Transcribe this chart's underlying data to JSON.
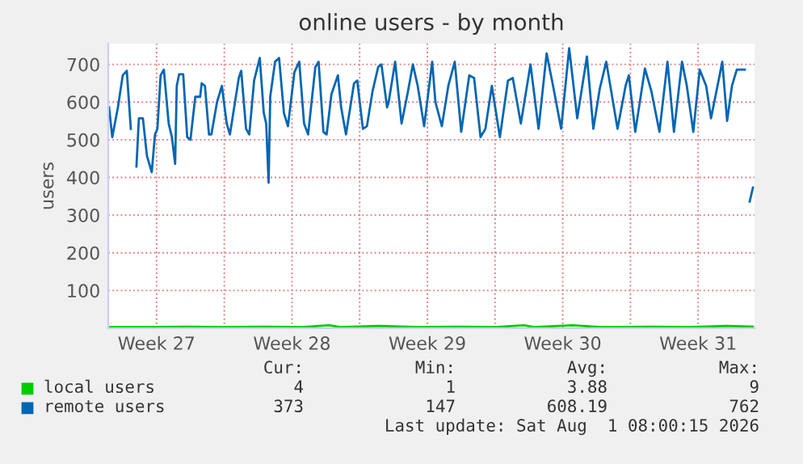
{
  "chart_data": {
    "type": "line",
    "title": "online users - by month",
    "ylabel": "users",
    "xlim": [
      "2026-06-30T00:00",
      "2026-08-02T10:00"
    ],
    "ylim": [
      0,
      755
    ],
    "xticks": [
      {
        "value": "2026-07-02T12:00",
        "label": "Week 27"
      },
      {
        "value": "2026-07-06T00:00",
        "label": null
      },
      {
        "value": "2026-07-09T12:00",
        "label": "Week 28"
      },
      {
        "value": "2026-07-13T00:00",
        "label": null
      },
      {
        "value": "2026-07-16T12:00",
        "label": "Week 29"
      },
      {
        "value": "2026-07-20T00:00",
        "label": null
      },
      {
        "value": "2026-07-23T12:00",
        "label": "Week 30"
      },
      {
        "value": "2026-07-27T00:00",
        "label": null
      },
      {
        "value": "2026-07-30T12:00",
        "label": "Week 31"
      }
    ],
    "yticks": [
      100,
      200,
      300,
      400,
      500,
      600,
      700
    ],
    "grid": true,
    "legend": "bottom",
    "marker": "none",
    "line_style": "solid",
    "series": [
      {
        "name": "local users",
        "color": "#00cc00",
        "x": [
          "2026-06-30T01:00",
          "2026-07-02T00:00",
          "2026-07-04T00:00",
          "2026-07-06T00:00",
          "2026-07-08T00:00",
          "2026-07-10T00:00",
          "2026-07-11T10:00",
          "2026-07-12T00:00",
          "2026-07-14T00:00",
          "2026-07-16T00:00",
          "2026-07-18T00:00",
          "2026-07-20T00:00",
          "2026-07-21T12:00",
          "2026-07-22T00:00",
          "2026-07-24T00:00",
          "2026-07-25T12:00",
          "2026-07-26T00:00",
          "2026-07-28T00:00",
          "2026-07-30T00:00",
          "2026-08-01T00:00",
          "2026-08-02T08:00"
        ],
        "values": [
          3,
          3,
          4,
          3,
          4,
          3,
          8,
          3,
          6,
          3,
          4,
          3,
          8,
          3,
          8,
          3,
          3,
          4,
          3,
          6,
          4
        ]
      },
      {
        "name": "remote users",
        "color": "#0066b3",
        "x": [
          "2026-06-30T01:00",
          "2026-06-30T05:00",
          "2026-06-30T12:00",
          "2026-06-30T18:00",
          "2026-06-30T23:00",
          "2026-07-01T04:00",
          "2026-07-01T07:00",
          "2026-07-01T11:00",
          "2026-07-01T14:00",
          "2026-07-01T19:00",
          "2026-07-02T00:00",
          "2026-07-02T06:00",
          "2026-07-02T10:00",
          "2026-07-02T13:00",
          "2026-07-02T17:00",
          "2026-07-02T21:00",
          "2026-07-03T03:00",
          "2026-07-03T07:00",
          "2026-07-03T11:00",
          "2026-07-03T13:00",
          "2026-07-03T16:00",
          "2026-07-03T21:00",
          "2026-07-04T02:00",
          "2026-07-04T06:00",
          "2026-07-04T12:00",
          "2026-07-04T18:00",
          "2026-07-04T20:00",
          "2026-07-05T00:00",
          "2026-07-05T05:00",
          "2026-07-05T08:00",
          "2026-07-05T15:00",
          "2026-07-05T21:00",
          "2026-07-06T03:00",
          "2026-07-06T07:00",
          "2026-07-06T18:00",
          "2026-07-06T21:00",
          "2026-07-07T03:00",
          "2026-07-07T07:00",
          "2026-07-07T13:00",
          "2026-07-07T20:00",
          "2026-07-08T01:00",
          "2026-07-08T04:00",
          "2026-07-08T07:00",
          "2026-07-08T09:00",
          "2026-07-08T15:00",
          "2026-07-08T20:00",
          "2026-07-09T02:00",
          "2026-07-09T07:00",
          "2026-07-09T15:00",
          "2026-07-09T21:00",
          "2026-07-10T03:00",
          "2026-07-10T08:00",
          "2026-07-10T17:00",
          "2026-07-10T21:00",
          "2026-07-11T03:00",
          "2026-07-11T07:00",
          "2026-07-11T13:00",
          "2026-07-11T21:00",
          "2026-07-12T01:00",
          "2026-07-12T07:00",
          "2026-07-12T17:00",
          "2026-07-12T21:00",
          "2026-07-13T04:00",
          "2026-07-13T09:00",
          "2026-07-13T16:00",
          "2026-07-13T23:00",
          "2026-07-14T03:00",
          "2026-07-14T10:00",
          "2026-07-14T12:00",
          "2026-07-14T20:00",
          "2026-07-15T04:00",
          "2026-07-15T12:00",
          "2026-07-15T18:00",
          "2026-07-16T00:00",
          "2026-07-16T08:00",
          "2026-07-16T18:00",
          "2026-07-16T22:00",
          "2026-07-17T06:00",
          "2026-07-17T14:00",
          "2026-07-17T22:00",
          "2026-07-18T06:00",
          "2026-07-18T16:00",
          "2026-07-18T22:00",
          "2026-07-19T06:00",
          "2026-07-19T12:00",
          "2026-07-19T20:00",
          "2026-07-20T06:00",
          "2026-07-20T16:00",
          "2026-07-20T22:00",
          "2026-07-21T08:00",
          "2026-07-21T20:00",
          "2026-07-22T06:00",
          "2026-07-22T16:00",
          "2026-07-23T00:00",
          "2026-07-23T10:00",
          "2026-07-23T20:00",
          "2026-07-24T06:00",
          "2026-07-24T18:00",
          "2026-07-25T02:00",
          "2026-07-25T10:00",
          "2026-07-25T18:00",
          "2026-07-26T08:00",
          "2026-07-26T18:00",
          "2026-07-26T22:00",
          "2026-07-27T06:00",
          "2026-07-27T18:00",
          "2026-07-28T02:00",
          "2026-07-28T12:00",
          "2026-07-28T22:00",
          "2026-07-29T06:00",
          "2026-07-29T16:00",
          "2026-07-29T22:00",
          "2026-07-30T06:00",
          "2026-07-30T14:00",
          "2026-07-30T22:00",
          "2026-07-31T04:00",
          "2026-07-31T10:00",
          "2026-07-31T18:00",
          "2026-08-01T00:00",
          "2026-08-01T06:00",
          "2026-08-01T12:00",
          "2026-08-01T22:00",
          "2026-08-02T00:00",
          "2026-08-02T04:00",
          "2026-08-02T08:00"
        ],
        "values": [
          586,
          507,
          586,
          671,
          683,
          529,
          null,
          429,
          557,
          557,
          457,
          414,
          514,
          529,
          671,
          686,
          543,
          507,
          436,
          643,
          674,
          674,
          507,
          500,
          614,
          614,
          650,
          643,
          514,
          514,
          600,
          643,
          543,
          514,
          664,
          683,
          529,
          514,
          657,
          717,
          571,
          543,
          386,
          614,
          707,
          717,
          571,
          536,
          679,
          707,
          543,
          514,
          693,
          707,
          521,
          514,
          621,
          671,
          586,
          514,
          650,
          657,
          529,
          536,
          629,
          693,
          700,
          586,
          600,
          707,
          543,
          629,
          700,
          643,
          536,
          707,
          600,
          536,
          643,
          707,
          521,
          671,
          664,
          507,
          529,
          643,
          507,
          657,
          664,
          543,
          700,
          529,
          729,
          643,
          529,
          743,
          557,
          721,
          529,
          636,
          707,
          529,
          643,
          671,
          521,
          689,
          629,
          521,
          707,
          521,
          707,
          643,
          521,
          686,
          643,
          557,
          621,
          707,
          550,
          643,
          686,
          686,
          null,
          336,
          373
        ]
      }
    ],
    "annotations": [
      "Cur:",
      "Min:",
      "Avg:",
      "Max:",
      "4",
      "1",
      "3.88",
      "9",
      "373",
      "147",
      "608.19",
      "762",
      "Last update: Sat Aug  1 08:00:15 2026"
    ]
  }
}
